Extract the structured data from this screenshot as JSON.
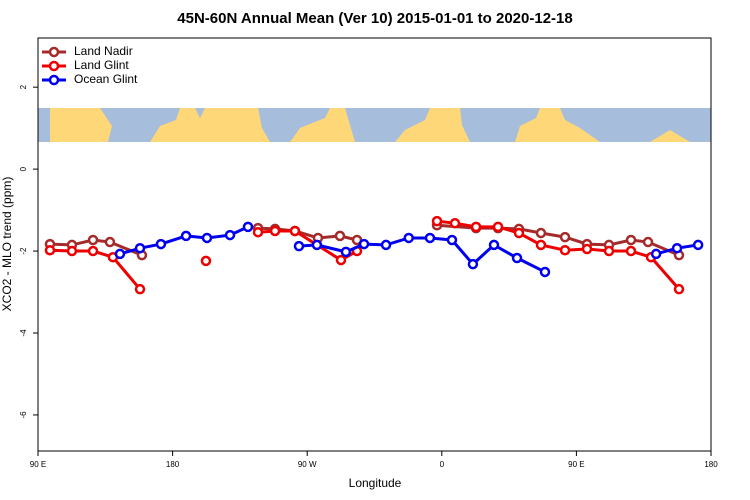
{
  "chart_data": {
    "type": "line",
    "title": "45N-60N Annual Mean (Ver 10)   2015-01-01 to 2020-12-18",
    "x_label": "Longitude",
    "y_label": "XCO2 - MLO trend (ppm)",
    "xlim": [
      90,
      540
    ],
    "ylim": [
      -6.88,
      3.2
    ],
    "xticks": [
      {
        "value": 90,
        "label": "90 E"
      },
      180,
      {
        "value": 270,
        "label": "90 W"
      },
      {
        "value": 360,
        "label": "0"
      },
      {
        "value": 450,
        "label": "90 E"
      },
      {
        "value": 540,
        "label": "180"
      }
    ],
    "yticks": [
      2,
      0,
      -2,
      -4,
      -6
    ],
    "legend": "top-left",
    "series": [
      {
        "name": "Land Nadir",
        "color": "#a52a2a",
        "x": [
          98.0,
          112.7,
          126.8,
          138.1,
          159.5,
          null,
          237.1,
          248.5,
          261.8,
          277.2,
          291.9,
          303.3,
          null,
          356.8,
          382.9,
          397.6,
          411.6,
          426.3,
          442.4,
          457.1,
          471.8,
          486.5,
          497.9,
          518.6
        ],
        "values": [
          -1.83,
          -1.85,
          -1.73,
          -1.78,
          -2.1,
          null,
          -1.44,
          -1.46,
          -1.51,
          -1.68,
          -1.63,
          -1.73,
          null,
          -1.37,
          -1.44,
          -1.44,
          -1.46,
          -1.56,
          -1.66,
          -1.83,
          -1.85,
          -1.73,
          -1.78,
          -2.1
        ]
      },
      {
        "name": "Land Glint",
        "color": "#ee0000",
        "x": [
          98.0,
          112.7,
          126.8,
          140.1,
          158.2,
          null,
          202.3,
          null,
          237.1,
          248.5,
          261.8,
          292.6,
          303.3,
          null,
          356.8,
          368.8,
          382.9,
          397.6,
          411.6,
          426.3,
          442.4,
          457.1,
          471.8,
          486.5,
          499.9,
          518.6
        ],
        "values": [
          -1.98,
          -2.0,
          -2.0,
          -2.15,
          -2.93,
          null,
          -2.24,
          null,
          -1.54,
          -1.51,
          -1.51,
          -2.22,
          -2.0,
          null,
          -1.27,
          -1.32,
          -1.41,
          -1.41,
          -1.56,
          -1.85,
          -1.98,
          -1.95,
          -2.0,
          -2.0,
          -2.15,
          -2.93
        ]
      },
      {
        "name": "Ocean Glint",
        "color": "#0000ee",
        "x": [
          144.8,
          158.2,
          172.2,
          189.0,
          203.0,
          218.4,
          230.4,
          null,
          264.5,
          276.5,
          295.9,
          308.0,
          322.7,
          337.9,
          352.1,
          366.8,
          380.8,
          394.9,
          410.3,
          429.0,
          null,
          503.3,
          517.3,
          531.4
        ],
        "values": [
          -2.07,
          -1.93,
          -1.83,
          -1.63,
          -1.68,
          -1.61,
          -1.41,
          null,
          -1.88,
          -1.85,
          -2.02,
          -1.83,
          -1.85,
          -1.68,
          -1.68,
          -1.73,
          -2.32,
          -1.85,
          -2.17,
          -2.51,
          null,
          -2.07,
          -1.93,
          -1.85
        ]
      }
    ]
  }
}
